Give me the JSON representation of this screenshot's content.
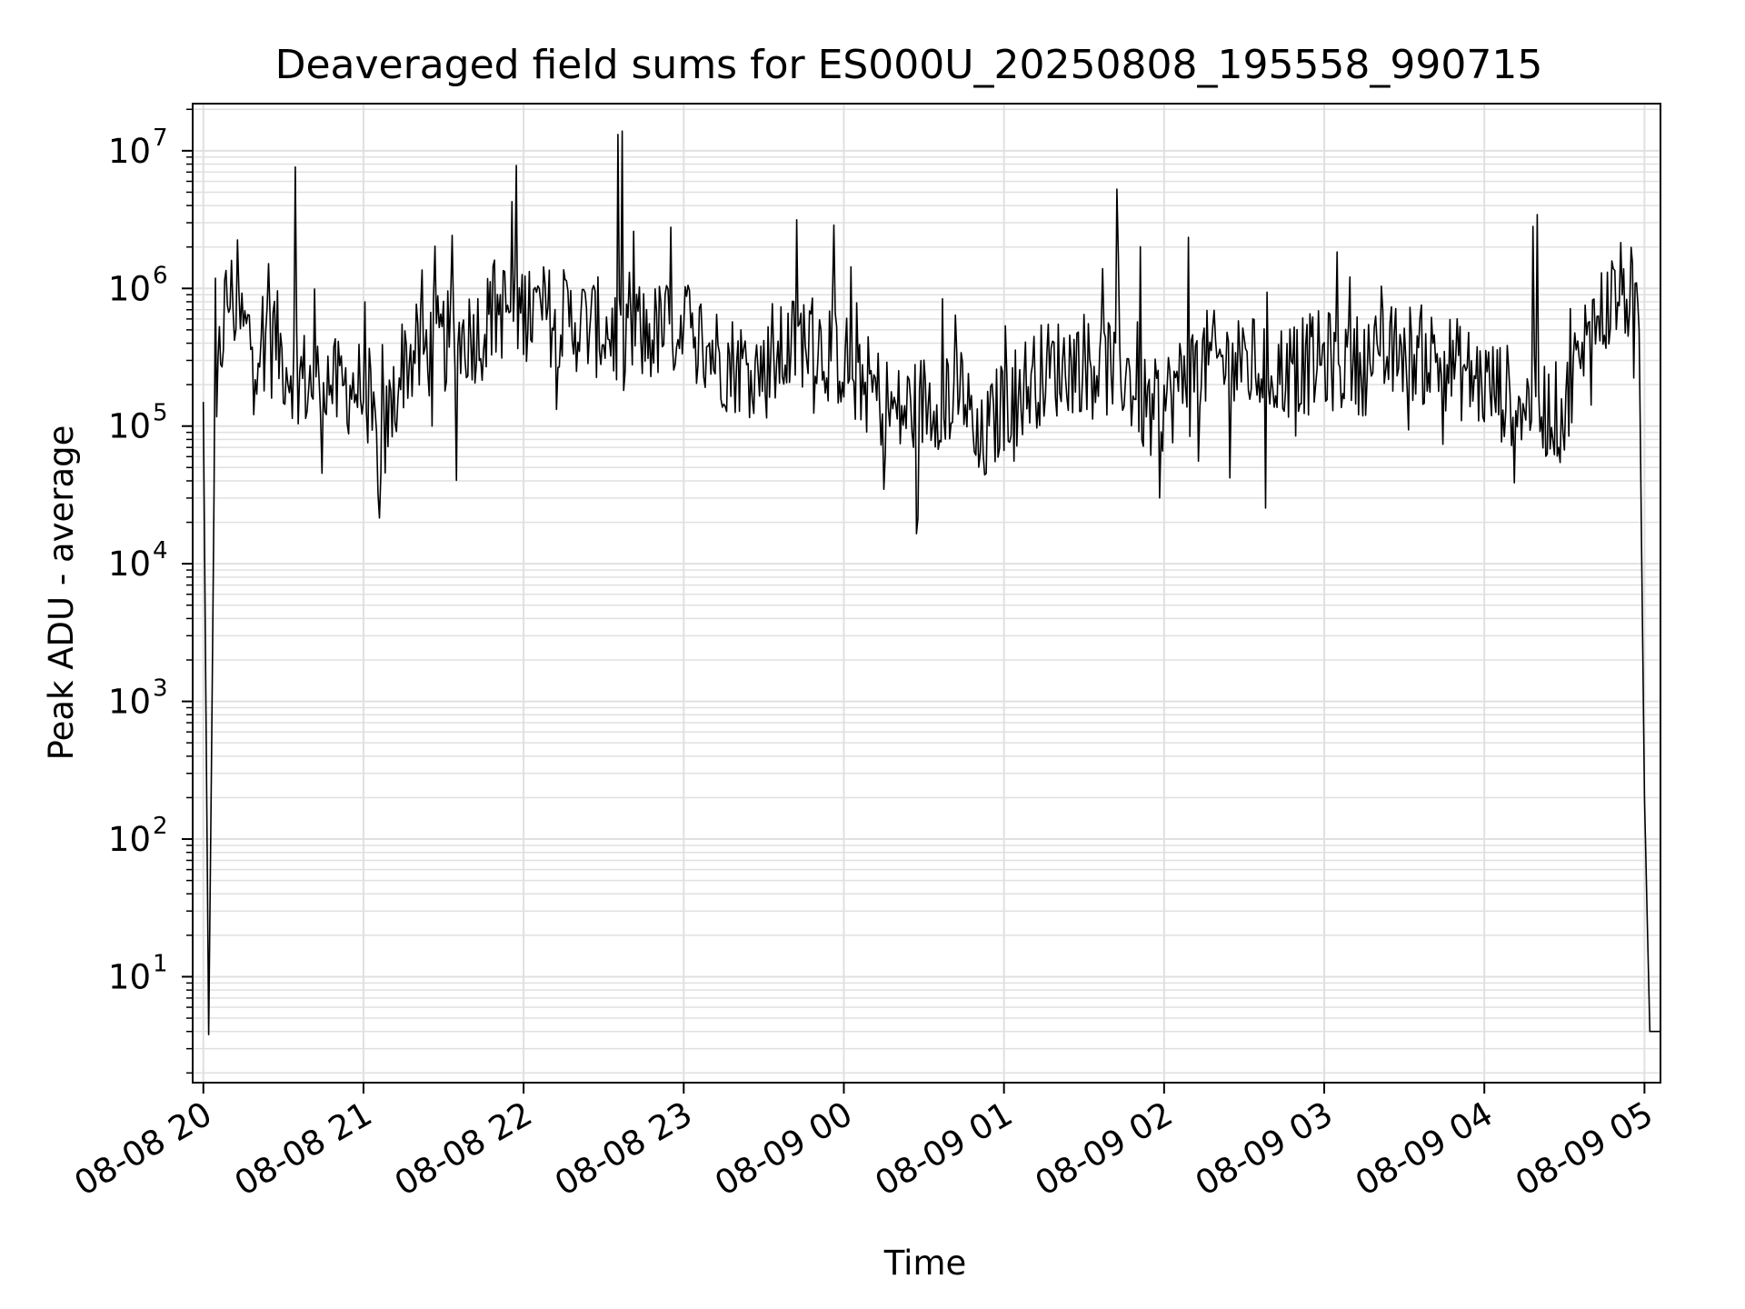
{
  "chart_data": {
    "type": "line",
    "title": "Deaveraged field sums for ES000U_20250808_195558_990715",
    "xlabel": "Time",
    "ylabel": "Peak ADU - average",
    "yscale": "log",
    "ylim": [
      1.7,
      22000000
    ],
    "xlim": [
      "08-08 19:56",
      "08-09 05:06"
    ],
    "grid": true,
    "line_color": "#000000",
    "grid_color": "#e0e0e0",
    "x_ticks": [
      "08-08 20",
      "08-08 21",
      "08-08 22",
      "08-08 23",
      "08-09 00",
      "08-09 01",
      "08-09 02",
      "08-09 03",
      "08-09 04",
      "08-09 05"
    ],
    "y_ticks": [
      {
        "value": 10,
        "base": "10",
        "exp": "1"
      },
      {
        "value": 100,
        "base": "10",
        "exp": "2"
      },
      {
        "value": 1000,
        "base": "10",
        "exp": "3"
      },
      {
        "value": 10000,
        "base": "10",
        "exp": "4"
      },
      {
        "value": 100000,
        "base": "10",
        "exp": "5"
      },
      {
        "value": 1000000,
        "base": "10",
        "exp": "6"
      },
      {
        "value": 10000000,
        "base": "10",
        "exp": "7"
      }
    ],
    "series": [
      {
        "x": [
          "08-08 20:00",
          "08-08 20:02",
          "08-08 20:04",
          "08-08 20:06",
          "08-08 20:08",
          "08-08 20:10",
          "08-08 20:15",
          "08-08 20:20",
          "08-08 20:25",
          "08-08 20:30",
          "08-08 20:35",
          "08-08 20:40",
          "08-08 20:45",
          "08-08 20:50",
          "08-08 20:55",
          "08-08 21:00",
          "08-08 21:06",
          "08-08 21:15",
          "08-08 21:30",
          "08-08 21:45",
          "08-08 21:48",
          "08-08 22:00",
          "08-08 22:15",
          "08-08 22:30",
          "08-08 22:45",
          "08-08 23:00",
          "08-08 23:15",
          "08-08 23:30",
          "08-08 23:45",
          "08-09 00:00",
          "08-09 00:15",
          "08-09 00:20",
          "08-09 00:30",
          "08-09 00:45",
          "08-09 00:50",
          "08-09 01:00",
          "08-09 01:15",
          "08-09 01:30",
          "08-09 01:45",
          "08-09 01:55",
          "08-09 02:00",
          "08-09 02:15",
          "08-09 02:30",
          "08-09 02:45",
          "08-09 03:00",
          "08-09 03:15",
          "08-09 03:30",
          "08-09 03:45",
          "08-09 04:00",
          "08-09 04:15",
          "08-09 04:30",
          "08-09 04:35",
          "08-09 04:40",
          "08-09 04:45",
          "08-09 04:50",
          "08-09 04:55",
          "08-09 04:58",
          "08-09 05:00",
          "08-09 05:02",
          "08-09 05:04",
          "08-09 05:06"
        ],
        "y": [
          150000,
          3.8,
          25000,
          300000,
          700000,
          900000,
          500000,
          400000,
          600000,
          300000,
          250000,
          200000,
          250000,
          180000,
          200000,
          180000,
          60000,
          300000,
          400000,
          500000,
          700000,
          700000,
          600000,
          500000,
          450000,
          550000,
          300000,
          250000,
          450000,
          300000,
          150000,
          120000,
          150000,
          180000,
          60000,
          150000,
          250000,
          300000,
          250000,
          120000,
          150000,
          300000,
          280000,
          250000,
          300000,
          280000,
          350000,
          300000,
          200000,
          150000,
          120000,
          300000,
          500000,
          700000,
          950000,
          900000,
          500000,
          200,
          4,
          4,
          4
        ]
      }
    ]
  }
}
